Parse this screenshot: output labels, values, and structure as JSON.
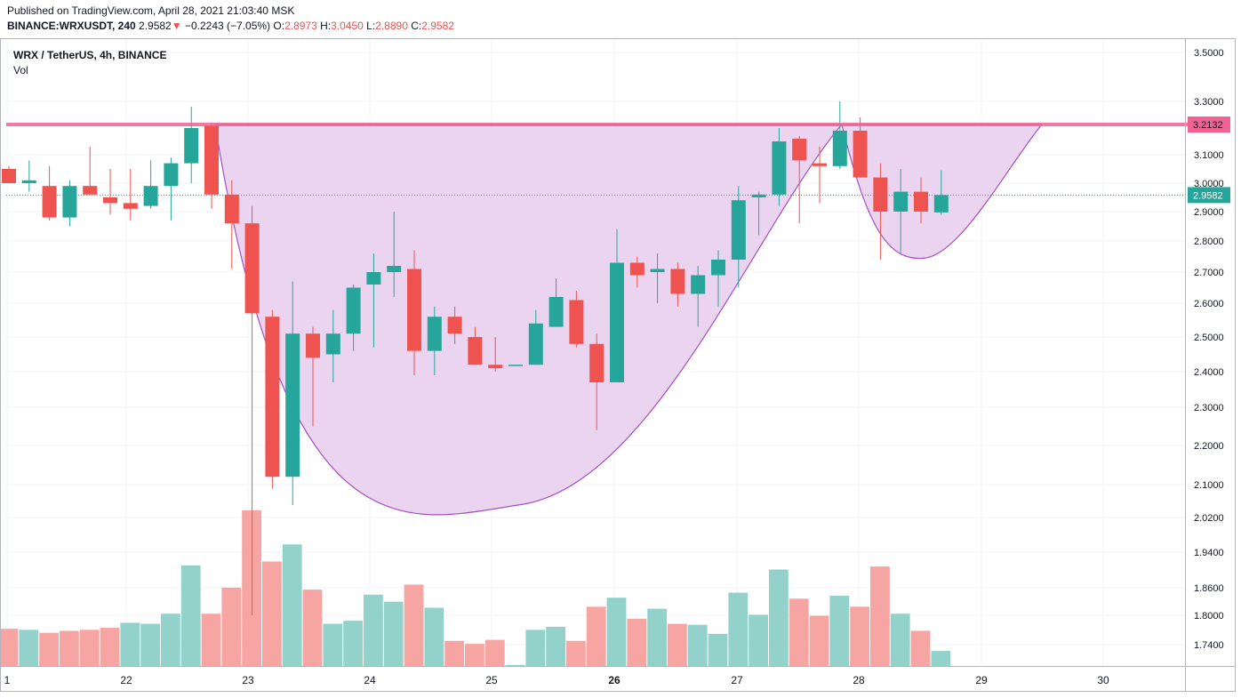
{
  "header": {
    "published": "Published on TradingView.com, April 28, 2021 21:03:40 MSK",
    "symbol": "BINANCE:WRXUSDT, 240",
    "last": "2.9582",
    "arrow": "▼",
    "change": "−0.2243 (−7.05%)",
    "o_label": "O:",
    "o_value": "2.8973",
    "h_label": "H:",
    "h_value": "3.0450",
    "l_label": "L:",
    "l_value": "2.8890",
    "c_label": "C:",
    "c_value": "2.9582"
  },
  "legend": {
    "title": "WRX / TetherUS, 4h, BINANCE",
    "volume_label": "Vol"
  },
  "colors": {
    "up": "#26a69a",
    "down": "#ef5350",
    "up_vol": "#93d2ca",
    "down_vol": "#f6a5a2",
    "resistance": "#f06292",
    "pattern_fill": "#ebd4f0",
    "pattern_stroke": "#a54fc4",
    "price_line": "#26a69a"
  },
  "chart_data": {
    "type": "candlestick",
    "title": "WRX / TetherUS, 4h, BINANCE",
    "y_ticks": [
      "3.5000",
      "3.3000",
      "3.1000",
      "3.0000",
      "2.9000",
      "2.8000",
      "2.7000",
      "2.6000",
      "2.5000",
      "2.4000",
      "2.3000",
      "2.2000",
      "2.1000",
      "2.0200",
      "1.9400",
      "1.8600",
      "1.8000",
      "1.7400"
    ],
    "x_ticks": [
      "1",
      "22",
      "23",
      "24",
      "25",
      "26",
      "27",
      "28",
      "29",
      "30"
    ],
    "resistance": {
      "value": 3.2132,
      "label": "3.2132"
    },
    "last_price": {
      "value": 2.9582,
      "label": "2.9582"
    },
    "pattern": "cup and handle",
    "candles": [
      {
        "o": 3.05,
        "h": 3.06,
        "l": 3.0,
        "c": 3.0
      },
      {
        "o": 3.0,
        "h": 3.08,
        "l": 2.97,
        "c": 3.01
      },
      {
        "o": 2.99,
        "h": 3.06,
        "l": 2.87,
        "c": 2.88
      },
      {
        "o": 2.88,
        "h": 3.01,
        "l": 2.85,
        "c": 2.99
      },
      {
        "o": 2.99,
        "h": 3.13,
        "l": 2.96,
        "c": 2.96
      },
      {
        "o": 2.95,
        "h": 3.05,
        "l": 2.89,
        "c": 2.93
      },
      {
        "o": 2.93,
        "h": 3.05,
        "l": 2.87,
        "c": 2.91
      },
      {
        "o": 2.92,
        "h": 3.08,
        "l": 2.91,
        "c": 2.99
      },
      {
        "o": 2.99,
        "h": 3.09,
        "l": 2.87,
        "c": 3.07
      },
      {
        "o": 3.07,
        "h": 3.28,
        "l": 3.0,
        "c": 3.2
      },
      {
        "o": 3.21,
        "h": 3.22,
        "l": 2.91,
        "c": 2.96
      },
      {
        "o": 2.96,
        "h": 3.01,
        "l": 2.71,
        "c": 2.86
      },
      {
        "o": 2.86,
        "h": 2.92,
        "l": 1.8,
        "c": 2.57
      },
      {
        "o": 2.56,
        "h": 2.58,
        "l": 2.09,
        "c": 2.12
      },
      {
        "o": 2.12,
        "h": 2.67,
        "l": 2.05,
        "c": 2.51
      },
      {
        "o": 2.51,
        "h": 2.53,
        "l": 2.25,
        "c": 2.44
      },
      {
        "o": 2.45,
        "h": 2.58,
        "l": 2.37,
        "c": 2.51
      },
      {
        "o": 2.51,
        "h": 2.66,
        "l": 2.46,
        "c": 2.65
      },
      {
        "o": 2.66,
        "h": 2.76,
        "l": 2.47,
        "c": 2.7
      },
      {
        "o": 2.7,
        "h": 2.9,
        "l": 2.62,
        "c": 2.72
      },
      {
        "o": 2.71,
        "h": 2.77,
        "l": 2.39,
        "c": 2.46
      },
      {
        "o": 2.46,
        "h": 2.59,
        "l": 2.39,
        "c": 2.56
      },
      {
        "o": 2.56,
        "h": 2.59,
        "l": 2.48,
        "c": 2.51
      },
      {
        "o": 2.5,
        "h": 2.53,
        "l": 2.42,
        "c": 2.42
      },
      {
        "o": 2.42,
        "h": 2.5,
        "l": 2.4,
        "c": 2.41
      },
      {
        "o": 2.42,
        "h": 2.42,
        "l": 2.42,
        "c": 2.42
      },
      {
        "o": 2.42,
        "h": 2.58,
        "l": 2.42,
        "c": 2.54
      },
      {
        "o": 2.53,
        "h": 2.68,
        "l": 2.53,
        "c": 2.62
      },
      {
        "o": 2.61,
        "h": 2.64,
        "l": 2.47,
        "c": 2.48
      },
      {
        "o": 2.48,
        "h": 2.51,
        "l": 2.24,
        "c": 2.37
      },
      {
        "o": 2.37,
        "h": 2.84,
        "l": 2.37,
        "c": 2.73
      },
      {
        "o": 2.73,
        "h": 2.75,
        "l": 2.65,
        "c": 2.69
      },
      {
        "o": 2.7,
        "h": 2.76,
        "l": 2.6,
        "c": 2.71
      },
      {
        "o": 2.71,
        "h": 2.73,
        "l": 2.59,
        "c": 2.63
      },
      {
        "o": 2.63,
        "h": 2.72,
        "l": 2.53,
        "c": 2.69
      },
      {
        "o": 2.69,
        "h": 2.77,
        "l": 2.59,
        "c": 2.74
      },
      {
        "o": 2.74,
        "h": 2.99,
        "l": 2.65,
        "c": 2.94
      },
      {
        "o": 2.95,
        "h": 2.97,
        "l": 2.82,
        "c": 2.96
      },
      {
        "o": 2.96,
        "h": 3.2,
        "l": 2.92,
        "c": 3.15
      },
      {
        "o": 3.16,
        "h": 3.17,
        "l": 2.86,
        "c": 3.08
      },
      {
        "o": 3.07,
        "h": 3.13,
        "l": 2.93,
        "c": 3.06
      },
      {
        "o": 3.06,
        "h": 3.3,
        "l": 3.05,
        "c": 3.19
      },
      {
        "o": 3.19,
        "h": 3.24,
        "l": 3.02,
        "c": 3.02
      },
      {
        "o": 3.02,
        "h": 3.07,
        "l": 2.74,
        "c": 2.9
      },
      {
        "o": 2.9,
        "h": 3.05,
        "l": 2.76,
        "c": 2.97
      },
      {
        "o": 2.97,
        "h": 3.02,
        "l": 2.86,
        "c": 2.9
      },
      {
        "o": 2.8973,
        "h": 3.045,
        "l": 2.889,
        "c": 2.9582
      }
    ],
    "volume_relative": [
      0.37,
      0.36,
      0.33,
      0.35,
      0.36,
      0.38,
      0.43,
      0.42,
      0.52,
      1.0,
      0.52,
      0.78,
      1.55,
      1.04,
      1.21,
      0.76,
      0.42,
      0.45,
      0.71,
      0.64,
      0.81,
      0.58,
      0.25,
      0.22,
      0.26,
      0.01,
      0.36,
      0.39,
      0.25,
      0.59,
      0.68,
      0.47,
      0.57,
      0.42,
      0.41,
      0.32,
      0.73,
      0.51,
      0.96,
      0.67,
      0.5,
      0.7,
      0.59,
      0.99,
      0.52,
      0.35,
      0.15
    ],
    "volume_up_flags": [
      false,
      true,
      false,
      false,
      false,
      false,
      true,
      true,
      true,
      true,
      false,
      false,
      false,
      false,
      true,
      false,
      true,
      true,
      true,
      true,
      false,
      true,
      false,
      false,
      false,
      true,
      true,
      true,
      false,
      false,
      true,
      false,
      true,
      false,
      true,
      true,
      true,
      true,
      true,
      false,
      false,
      true,
      false,
      false,
      true,
      false,
      true
    ]
  }
}
